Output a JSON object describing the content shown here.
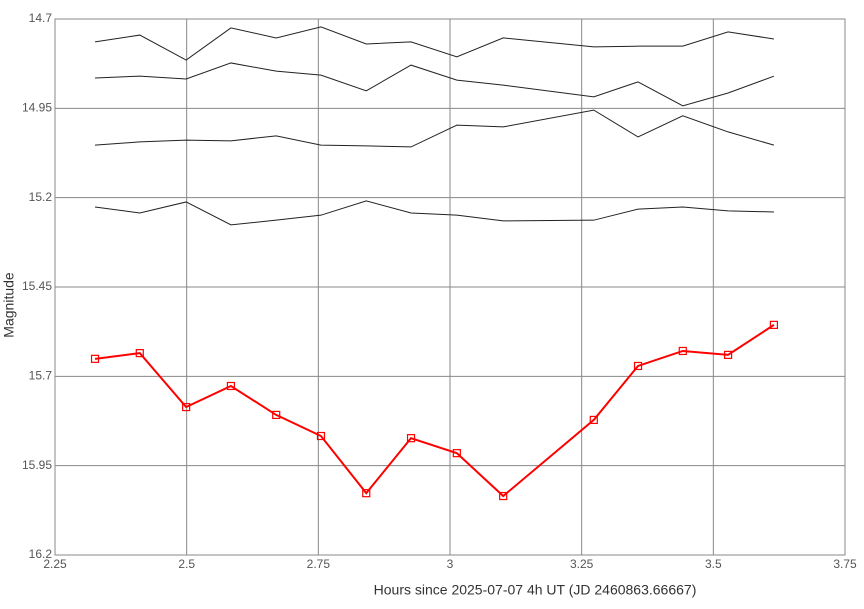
{
  "chart_data": {
    "type": "line",
    "x_label": "Hours since 2025-07-07 4h UT (JD 2460863.66667)",
    "y_label": "Magnitude",
    "x": [
      2.326,
      2.411,
      2.499,
      2.584,
      2.67,
      2.755,
      2.841,
      2.926,
      3.013,
      3.101,
      3.273,
      3.357,
      3.442,
      3.528,
      3.615
    ],
    "series": [
      {
        "color": "#222222",
        "values": [
          14.764,
          14.745,
          14.815,
          14.725,
          14.753,
          14.722,
          14.77,
          14.764,
          14.806,
          14.753,
          14.778,
          14.776,
          14.776,
          14.736,
          14.756
        ]
      },
      {
        "color": "#222222",
        "values": [
          14.865,
          14.86,
          14.868,
          14.823,
          14.846,
          14.857,
          14.901,
          14.829,
          14.871,
          14.885,
          14.918,
          14.876,
          14.943,
          14.907,
          14.86
        ]
      },
      {
        "color": "#222222",
        "values": [
          15.053,
          15.044,
          15.039,
          15.041,
          15.027,
          15.053,
          15.055,
          15.058,
          14.997,
          15.002,
          14.955,
          15.03,
          14.971,
          15.016,
          15.053
        ]
      },
      {
        "color": "#222222",
        "values": [
          15.226,
          15.243,
          15.212,
          15.276,
          15.263,
          15.249,
          15.209,
          15.243,
          15.249,
          15.265,
          15.263,
          15.232,
          15.226,
          15.237,
          15.24
        ]
      },
      {
        "color": "#ff0000",
        "markers": true,
        "values": [
          15.651,
          15.635,
          15.786,
          15.727,
          15.808,
          15.867,
          16.027,
          15.873,
          15.915,
          16.035,
          15.822,
          15.671,
          15.629,
          15.64,
          15.556
        ]
      }
    ],
    "xlim": [
      2.25,
      3.75
    ],
    "xticks": [
      2.25,
      2.5,
      2.75,
      3,
      3.25,
      3.5,
      3.75
    ],
    "ylim": [
      14.7,
      16.2
    ],
    "yticks": [
      14.7,
      14.95,
      15.2,
      15.45,
      15.7,
      15.95,
      16.2
    ],
    "y_inverted": true,
    "grid": true
  }
}
